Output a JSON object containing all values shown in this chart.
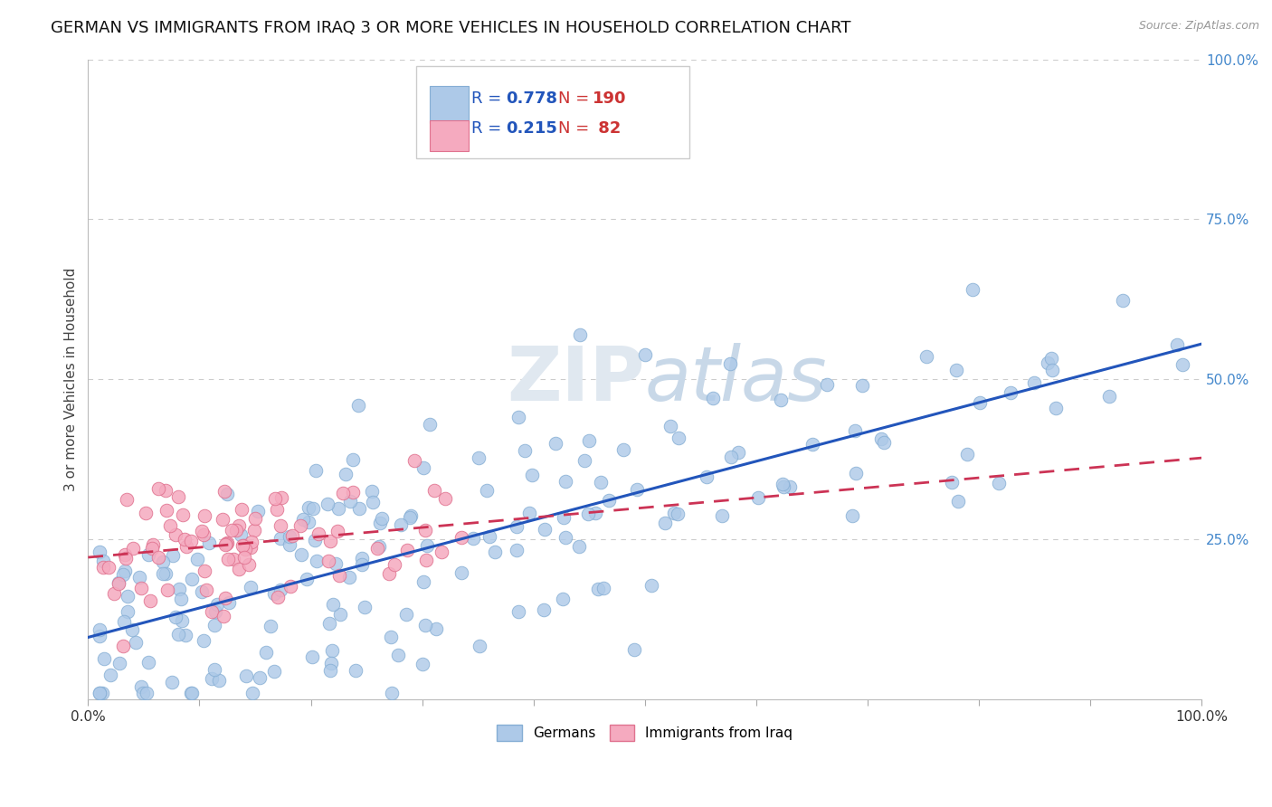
{
  "title": "GERMAN VS IMMIGRANTS FROM IRAQ 3 OR MORE VEHICLES IN HOUSEHOLD CORRELATION CHART",
  "source_text": "Source: ZipAtlas.com",
  "ylabel": "3 or more Vehicles in Household",
  "xlim": [
    0.0,
    1.0
  ],
  "ylim": [
    0.0,
    1.0
  ],
  "german_R": 0.778,
  "german_N": 190,
  "iraq_R": 0.215,
  "iraq_N": 82,
  "german_color": "#adc9e8",
  "german_edge_color": "#85aed4",
  "iraq_color": "#f5aabf",
  "iraq_edge_color": "#e0728f",
  "german_line_color": "#2255bb",
  "iraq_line_color": "#cc3355",
  "legend_R_color": "#2255bb",
  "legend_N_color": "#cc3333",
  "background_color": "#ffffff",
  "grid_color": "#cccccc",
  "watermark_color": "#e0e8f0",
  "title_fontsize": 13,
  "axis_label_fontsize": 11,
  "tick_fontsize": 11,
  "legend_fontsize": 13
}
